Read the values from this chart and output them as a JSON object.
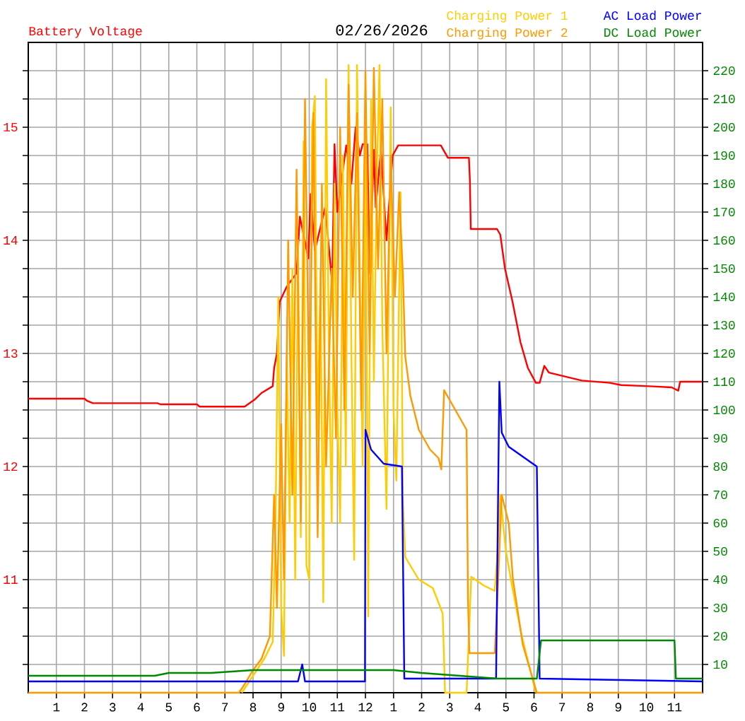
{
  "chart_data": {
    "type": "line",
    "title": "02/26/2026",
    "ylabel": "Battery Voltage",
    "legend": "top right",
    "grid": true,
    "xlim": [
      "2026-02-26T00:00",
      "2026-02-27T00:00"
    ],
    "ylim": [
      10,
      15.75
    ],
    "y2lim": [
      0,
      230
    ],
    "xticks": [
      {
        "value": "2026-02-26T01:00",
        "label": "1"
      },
      {
        "value": "2026-02-26T02:00",
        "label": "2"
      },
      {
        "value": "2026-02-26T03:00",
        "label": "3"
      },
      {
        "value": "2026-02-26T04:00",
        "label": "4"
      },
      {
        "value": "2026-02-26T05:00",
        "label": "5"
      },
      {
        "value": "2026-02-26T06:00",
        "label": "6"
      },
      {
        "value": "2026-02-26T07:00",
        "label": "7"
      },
      {
        "value": "2026-02-26T08:00",
        "label": "8"
      },
      {
        "value": "2026-02-26T09:00",
        "label": "9"
      },
      {
        "value": "2026-02-26T10:00",
        "label": "10"
      },
      {
        "value": "2026-02-26T11:00",
        "label": "11"
      },
      {
        "value": "2026-02-26T12:00",
        "label": "12"
      },
      {
        "value": "2026-02-26T13:00",
        "label": "1"
      },
      {
        "value": "2026-02-26T14:00",
        "label": "2"
      },
      {
        "value": "2026-02-26T15:00",
        "label": "3"
      },
      {
        "value": "2026-02-26T16:00",
        "label": "4"
      },
      {
        "value": "2026-02-26T17:00",
        "label": "5"
      },
      {
        "value": "2026-02-26T18:00",
        "label": "6"
      },
      {
        "value": "2026-02-26T19:00",
        "label": "7"
      },
      {
        "value": "2026-02-26T20:00",
        "label": "8"
      },
      {
        "value": "2026-02-26T21:00",
        "label": "9"
      },
      {
        "value": "2026-02-26T22:00",
        "label": "10"
      },
      {
        "value": "2026-02-26T23:00",
        "label": "11"
      }
    ],
    "yticks": [
      {
        "value": 10.25,
        "label": null
      },
      {
        "value": 10.5,
        "label": null
      },
      {
        "value": 10.75,
        "label": null
      },
      11,
      {
        "value": 11.25,
        "label": null
      },
      {
        "value": 11.5,
        "label": null
      },
      {
        "value": 11.75,
        "label": null
      },
      12,
      {
        "value": 12.25,
        "label": null
      },
      {
        "value": 12.5,
        "label": null
      },
      {
        "value": 12.75,
        "label": null
      },
      13,
      {
        "value": 13.25,
        "label": null
      },
      {
        "value": 13.5,
        "label": null
      },
      {
        "value": 13.75,
        "label": null
      },
      14,
      {
        "value": 14.25,
        "label": null
      },
      {
        "value": 14.5,
        "label": null
      },
      {
        "value": 14.75,
        "label": null
      },
      15,
      {
        "value": 15.25,
        "label": null
      },
      {
        "value": 15.5,
        "label": null
      }
    ],
    "y2ticks": [
      10,
      20,
      30,
      40,
      50,
      60,
      70,
      80,
      90,
      100,
      110,
      120,
      130,
      140,
      150,
      160,
      170,
      180,
      190,
      200,
      210,
      220
    ],
    "series": [
      {
        "color": "#ff0000",
        "x": [
          "2026-02-26T00:00",
          "2026-02-26T02:00",
          "2026-02-26T02:06",
          "2026-02-26T02:18",
          "2026-02-26T04:36",
          "2026-02-26T04:42",
          "2026-02-26T06:00",
          "2026-02-26T06:06",
          "2026-02-26T07:42",
          "2026-02-26T08:03",
          "2026-02-26T08:18",
          "2026-02-26T08:42",
          "2026-02-26T08:45",
          "2026-02-26T08:51",
          "2026-02-26T08:57",
          "2026-02-26T09:12",
          "2026-02-26T09:33",
          "2026-02-26T09:40",
          "2026-02-26T09:58",
          "2026-02-26T10:03",
          "2026-02-26T10:12",
          "2026-02-26T10:34",
          "2026-02-26T10:49",
          "2026-02-26T10:54",
          "2026-02-26T11:00",
          "2026-02-26T11:19",
          "2026-02-26T11:30",
          "2026-02-26T11:39",
          "2026-02-26T11:48",
          "2026-02-26T11:54",
          "2026-02-26T12:04",
          "2026-02-26T12:09",
          "2026-02-26T12:18",
          "2026-02-26T12:22",
          "2026-02-26T12:33",
          "2026-02-26T12:45",
          "2026-02-26T12:58",
          "2026-02-26T13:10",
          "2026-02-26T14:41",
          "2026-02-26T14:56",
          "2026-02-26T15:41",
          "2026-02-26T15:43",
          "2026-02-26T15:45",
          "2026-02-26T16:41",
          "2026-02-26T16:48",
          "2026-02-26T16:58",
          "2026-02-26T17:14",
          "2026-02-26T17:31",
          "2026-02-26T17:47",
          "2026-02-26T18:04",
          "2026-02-26T18:12",
          "2026-02-26T18:22",
          "2026-02-26T18:32",
          "2026-02-26T18:52",
          "2026-02-26T19:42",
          "2026-02-26T20:42",
          "2026-02-26T21:06",
          "2026-02-26T22:06",
          "2026-02-26T22:54",
          "2026-02-26T23:08",
          "2026-02-26T23:12",
          "2026-02-27T00:00"
        ],
        "values": [
          12.6,
          12.6,
          12.58,
          12.56,
          12.56,
          12.55,
          12.55,
          12.53,
          12.53,
          12.59,
          12.65,
          12.71,
          12.87,
          13.0,
          13.46,
          13.59,
          13.71,
          14.21,
          13.84,
          14.41,
          13.91,
          14.29,
          13.62,
          14.85,
          14.25,
          14.84,
          14.5,
          15.0,
          14.75,
          14.85,
          14.85,
          13.71,
          14.8,
          14.29,
          14.8,
          14.0,
          14.75,
          14.84,
          14.84,
          14.73,
          14.73,
          14.54,
          14.1,
          14.1,
          14.05,
          13.75,
          13.46,
          13.1,
          12.87,
          12.74,
          12.74,
          12.89,
          12.83,
          12.81,
          12.76,
          12.74,
          12.72,
          12.71,
          12.7,
          12.67,
          12.75,
          12.75
        ]
      },
      {
        "name": "Charging Power 1",
        "color": "#ffcc00",
        "axis": "y2",
        "x": [
          "2026-02-26T07:36",
          "2026-02-26T08:00",
          "2026-02-26T08:24",
          "2026-02-26T08:42",
          "2026-02-26T08:48",
          "2026-02-26T08:54",
          "2026-02-26T09:00",
          "2026-02-26T09:06",
          "2026-02-26T09:12",
          "2026-02-26T09:18",
          "2026-02-26T09:24",
          "2026-02-26T09:30",
          "2026-02-26T09:36",
          "2026-02-26T09:42",
          "2026-02-26T09:48",
          "2026-02-26T09:54",
          "2026-02-26T10:00",
          "2026-02-26T10:06",
          "2026-02-26T10:12",
          "2026-02-26T10:18",
          "2026-02-26T10:24",
          "2026-02-26T10:30",
          "2026-02-26T10:36",
          "2026-02-26T10:42",
          "2026-02-26T10:48",
          "2026-02-26T10:54",
          "2026-02-26T11:00",
          "2026-02-26T11:06",
          "2026-02-26T11:12",
          "2026-02-26T11:18",
          "2026-02-26T11:24",
          "2026-02-26T11:30",
          "2026-02-26T11:36",
          "2026-02-26T11:42",
          "2026-02-26T11:48",
          "2026-02-26T11:54",
          "2026-02-26T12:00",
          "2026-02-26T12:06",
          "2026-02-26T12:12",
          "2026-02-26T12:18",
          "2026-02-26T12:24",
          "2026-02-26T12:30",
          "2026-02-26T12:36",
          "2026-02-26T12:45",
          "2026-02-26T12:54",
          "2026-02-26T13:00",
          "2026-02-26T13:06",
          "2026-02-26T13:15",
          "2026-02-26T13:20",
          "2026-02-26T13:25",
          "2026-02-26T13:54",
          "2026-02-26T14:24",
          "2026-02-26T14:45",
          "2026-02-26T14:50",
          "2026-02-26T15:36",
          "2026-02-26T15:46",
          "2026-02-26T16:12",
          "2026-02-26T16:36",
          "2026-02-26T16:41",
          "2026-02-26T16:48",
          "2026-02-26T17:00",
          "2026-02-26T17:14",
          "2026-02-26T17:34",
          "2026-02-26T18:04"
        ],
        "values": [
          0,
          6,
          12,
          18,
          60,
          140,
          30,
          13,
          120,
          60,
          150,
          40,
          160,
          55,
          195,
          45,
          40,
          200,
          211,
          90,
          150,
          32,
          217,
          120,
          60,
          180,
          100,
          60,
          190,
          80,
          222,
          120,
          47,
          222,
          150,
          80,
          200,
          27,
          210,
          110,
          180,
          222,
          130,
          65,
          207,
          100,
          75,
          177,
          68,
          48,
          40,
          37,
          28,
          0,
          0,
          41,
          38,
          36,
          47,
          70,
          50,
          37,
          20,
          0
        ]
      },
      {
        "name": "Charging Power 2",
        "color": "#ff9900",
        "axis": "y2",
        "x": [
          "2026-02-26T00:00",
          "2026-02-26T07:30",
          "2026-02-26T07:42",
          "2026-02-26T08:00",
          "2026-02-26T08:18",
          "2026-02-26T08:36",
          "2026-02-26T08:45",
          "2026-02-26T08:51",
          "2026-02-26T09:00",
          "2026-02-26T09:06",
          "2026-02-26T09:15",
          "2026-02-26T09:24",
          "2026-02-26T09:33",
          "2026-02-26T09:42",
          "2026-02-26T09:51",
          "2026-02-26T10:00",
          "2026-02-26T10:09",
          "2026-02-26T10:18",
          "2026-02-26T10:27",
          "2026-02-26T10:36",
          "2026-02-26T10:48",
          "2026-02-26T10:57",
          "2026-02-26T11:06",
          "2026-02-26T11:15",
          "2026-02-26T11:24",
          "2026-02-26T11:33",
          "2026-02-26T11:42",
          "2026-02-26T11:51",
          "2026-02-26T12:00",
          "2026-02-26T12:09",
          "2026-02-26T12:18",
          "2026-02-26T12:27",
          "2026-02-26T12:36",
          "2026-02-26T12:45",
          "2026-02-26T12:54",
          "2026-02-26T13:03",
          "2026-02-26T13:12",
          "2026-02-26T13:20",
          "2026-02-26T13:25",
          "2026-02-26T13:36",
          "2026-02-26T13:54",
          "2026-02-26T14:18",
          "2026-02-26T14:36",
          "2026-02-26T14:42",
          "2026-02-26T14:48",
          "2026-02-26T15:12",
          "2026-02-26T15:36",
          "2026-02-26T15:39",
          "2026-02-26T15:42",
          "2026-02-26T16:36",
          "2026-02-26T16:41",
          "2026-02-26T16:51",
          "2026-02-26T17:06",
          "2026-02-26T17:15",
          "2026-02-26T17:36",
          "2026-02-26T18:06",
          "2026-02-27T00:00"
        ],
        "values": [
          0,
          0,
          3,
          8,
          12,
          20,
          70,
          30,
          95,
          40,
          160,
          70,
          185,
          60,
          210,
          100,
          205,
          55,
          180,
          80,
          150,
          90,
          200,
          100,
          215,
          140,
          205,
          100,
          220,
          120,
          221,
          150,
          210,
          120,
          190,
          140,
          177,
          148,
          119,
          105,
          93,
          86,
          83,
          79,
          107,
          100,
          93,
          33,
          14,
          14,
          30,
          70,
          60,
          40,
          17,
          0,
          0
        ]
      },
      {
        "name": "AC Load Power",
        "color": "#0000ff",
        "axis": "y2",
        "x": [
          "2026-02-26T00:00",
          "2026-02-26T09:36",
          "2026-02-26T09:45",
          "2026-02-26T09:51",
          "2026-02-26T11:59",
          "2026-02-26T12:00",
          "2026-02-26T12:12",
          "2026-02-26T12:39",
          "2026-02-26T13:18",
          "2026-02-26T13:23",
          "2026-02-26T16:39",
          "2026-02-26T16:46",
          "2026-02-26T16:51",
          "2026-02-26T17:06",
          "2026-02-26T18:06",
          "2026-02-26T18:12",
          "2026-02-27T00:00"
        ],
        "values": [
          4,
          4,
          10,
          4,
          4,
          93,
          86,
          81,
          80,
          5,
          5,
          110,
          92,
          87,
          80,
          5,
          4
        ]
      },
      {
        "name": "DC Load Power",
        "color": "#008800",
        "axis": "y2",
        "x": [
          "2026-02-26T00:00",
          "2026-02-26T04:30",
          "2026-02-26T05:00",
          "2026-02-26T06:30",
          "2026-02-26T08:00",
          "2026-02-26T13:00",
          "2026-02-26T14:00",
          "2026-02-26T16:42",
          "2026-02-26T18:06",
          "2026-02-26T18:15",
          "2026-02-26T23:00",
          "2026-02-26T23:03",
          "2026-02-27T00:00"
        ],
        "values": [
          6,
          6,
          7,
          7,
          8,
          8,
          7,
          5,
          5,
          18.5,
          18.5,
          5,
          5
        ]
      }
    ]
  }
}
